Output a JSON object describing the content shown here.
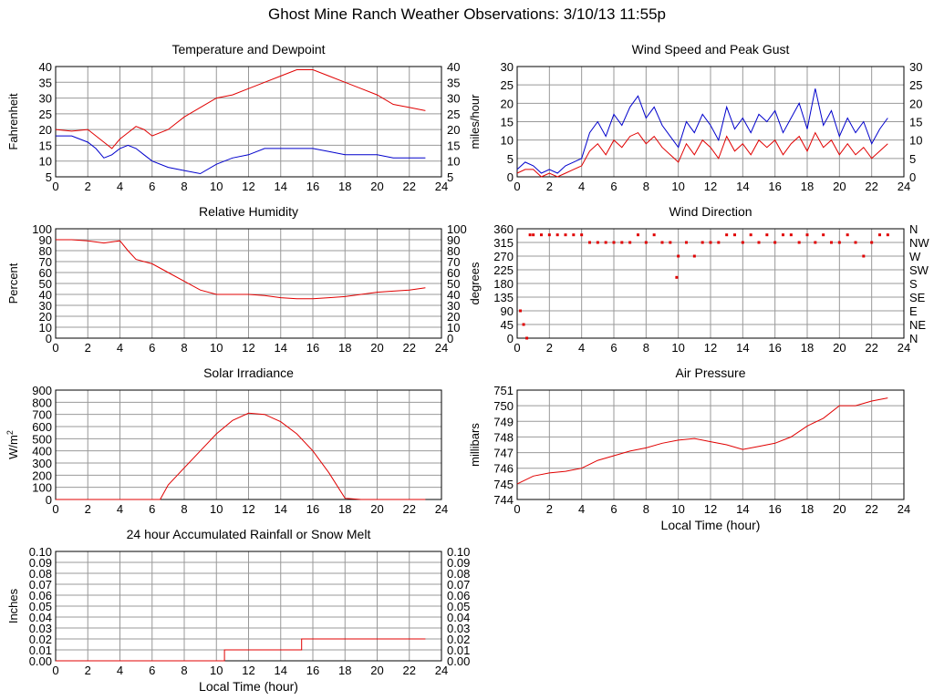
{
  "page_title": "Ghost Mine Ranch Weather Observations: 3/10/13 11:55p",
  "colors": {
    "red": "#e00000",
    "blue": "#0000cc",
    "grid": "#999999",
    "axis": "#000000"
  },
  "chart_data": [
    {
      "id": "temp",
      "type": "line",
      "title": "Temperature and Dewpoint",
      "ylabel": "Fahrenheit",
      "right_axis": true,
      "xlim": [
        0,
        24
      ],
      "ylim": [
        5,
        40
      ],
      "xticks": [
        "0",
        "2",
        "4",
        "6",
        "8",
        "10",
        "12",
        "14",
        "16",
        "18",
        "20",
        "22",
        "24"
      ],
      "yticks": [
        "5",
        "10",
        "15",
        "20",
        "25",
        "30",
        "35",
        "40"
      ],
      "xlabel": "",
      "series": [
        {
          "color": "red",
          "x": [
            0,
            1,
            2,
            3,
            3.5,
            4,
            4.5,
            5,
            5.5,
            6,
            7,
            8,
            9,
            10,
            11,
            12,
            13,
            14,
            15,
            16,
            17,
            18,
            19,
            20,
            21,
            22,
            23
          ],
          "y": [
            20,
            19.5,
            20,
            16,
            14,
            17,
            19,
            21,
            20,
            18,
            20,
            24,
            27,
            30,
            31,
            33,
            35,
            37,
            39,
            39,
            37,
            35,
            33,
            31,
            28,
            27,
            26
          ]
        },
        {
          "color": "blue",
          "x": [
            0,
            1,
            2,
            2.5,
            3,
            3.5,
            4,
            4.5,
            5,
            5.5,
            6,
            7,
            8,
            9,
            10,
            11,
            12,
            13,
            14,
            15,
            16,
            17,
            18,
            19,
            20,
            21,
            22,
            23
          ],
          "y": [
            18,
            18,
            16,
            14,
            11,
            12,
            14,
            15,
            14,
            12,
            10,
            8,
            7,
            6,
            9,
            11,
            12,
            14,
            14,
            14,
            14,
            13,
            12,
            12,
            12,
            11,
            11,
            11
          ]
        }
      ]
    },
    {
      "id": "wind",
      "type": "line",
      "title": "Wind Speed and Peak Gust",
      "ylabel": "miles/hour",
      "right_axis": true,
      "xlim": [
        0,
        24
      ],
      "ylim": [
        0,
        30
      ],
      "xticks": [
        "0",
        "2",
        "4",
        "6",
        "8",
        "10",
        "12",
        "14",
        "16",
        "18",
        "20",
        "22",
        "24"
      ],
      "yticks": [
        "0",
        "5",
        "10",
        "15",
        "20",
        "25",
        "30"
      ],
      "xlabel": "",
      "series": [
        {
          "color": "blue",
          "x": [
            0,
            0.5,
            1,
            1.5,
            2,
            2.5,
            3,
            3.5,
            4,
            4.5,
            5,
            5.5,
            6,
            6.5,
            7,
            7.5,
            8,
            8.5,
            9,
            9.5,
            10,
            10.5,
            11,
            11.5,
            12,
            12.5,
            13,
            13.5,
            14,
            14.5,
            15,
            15.5,
            16,
            16.5,
            17,
            17.5,
            18,
            18.5,
            19,
            19.5,
            20,
            20.5,
            21,
            21.5,
            22,
            22.5,
            23
          ],
          "y": [
            2,
            4,
            3,
            1,
            2,
            1,
            3,
            4,
            5,
            12,
            15,
            11,
            17,
            14,
            19,
            22,
            16,
            19,
            14,
            11,
            8,
            15,
            12,
            17,
            14,
            10,
            19,
            13,
            16,
            12,
            17,
            15,
            18,
            12,
            16,
            20,
            13,
            24,
            14,
            18,
            11,
            16,
            12,
            15,
            9,
            13,
            16
          ]
        },
        {
          "color": "red",
          "x": [
            0,
            0.5,
            1,
            1.5,
            2,
            2.5,
            3,
            3.5,
            4,
            4.5,
            5,
            5.5,
            6,
            6.5,
            7,
            7.5,
            8,
            8.5,
            9,
            9.5,
            10,
            10.5,
            11,
            11.5,
            12,
            12.5,
            13,
            13.5,
            14,
            14.5,
            15,
            15.5,
            16,
            16.5,
            17,
            17.5,
            18,
            18.5,
            19,
            19.5,
            20,
            20.5,
            21,
            21.5,
            22,
            22.5,
            23
          ],
          "y": [
            1,
            2,
            2,
            0,
            1,
            0,
            1,
            2,
            3,
            7,
            9,
            6,
            10,
            8,
            11,
            12,
            9,
            11,
            8,
            6,
            4,
            9,
            6,
            10,
            8,
            5,
            11,
            7,
            9,
            6,
            10,
            8,
            10,
            6,
            9,
            11,
            7,
            12,
            8,
            10,
            6,
            9,
            6,
            8,
            5,
            7,
            9
          ]
        }
      ]
    },
    {
      "id": "humidity",
      "type": "line",
      "title": "Relative Humidity",
      "ylabel": "Percent",
      "right_axis": true,
      "xlim": [
        0,
        24
      ],
      "ylim": [
        0,
        100
      ],
      "xticks": [
        "0",
        "2",
        "4",
        "6",
        "8",
        "10",
        "12",
        "14",
        "16",
        "18",
        "20",
        "22",
        "24"
      ],
      "yticks": [
        "0",
        "10",
        "20",
        "30",
        "40",
        "50",
        "60",
        "70",
        "80",
        "90",
        "100"
      ],
      "xlabel": "",
      "series": [
        {
          "color": "red",
          "x": [
            0,
            1,
            2,
            3,
            3.5,
            4,
            4.5,
            5,
            5.5,
            6,
            7,
            8,
            9,
            10,
            11,
            12,
            13,
            14,
            15,
            16,
            17,
            18,
            19,
            20,
            21,
            22,
            23
          ],
          "y": [
            90,
            90,
            89,
            87,
            88,
            89,
            80,
            72,
            70,
            68,
            60,
            52,
            44,
            40,
            40,
            40,
            39,
            37,
            36,
            36,
            37,
            38,
            40,
            42,
            43,
            44,
            46
          ]
        }
      ]
    },
    {
      "id": "winddir",
      "type": "scatter",
      "title": "Wind Direction",
      "ylabel": "degrees",
      "right_axis": false,
      "right_labels": [
        "N",
        "NE",
        "E",
        "SE",
        "S",
        "SW",
        "W",
        "NW",
        "N"
      ],
      "xlim": [
        0,
        24
      ],
      "ylim": [
        0,
        360
      ],
      "xticks": [
        "0",
        "2",
        "4",
        "6",
        "8",
        "10",
        "12",
        "14",
        "16",
        "18",
        "20",
        "22",
        "24"
      ],
      "yticks": [
        "0",
        "45",
        "90",
        "135",
        "180",
        "225",
        "270",
        "315",
        "360"
      ],
      "xlabel": "",
      "series": [
        {
          "color": "red",
          "x": [
            0.2,
            0.4,
            0.6,
            0.8,
            1,
            1.5,
            2,
            2.5,
            3,
            3.5,
            4,
            4.5,
            5,
            5.5,
            6,
            6.5,
            7,
            7.5,
            8,
            8.5,
            9,
            9.5,
            9.9,
            10,
            10.5,
            11,
            11.5,
            12,
            12.5,
            13,
            13.5,
            14,
            14.5,
            15,
            15.5,
            16,
            16.5,
            17,
            17.5,
            18,
            18.5,
            19,
            19.5,
            20,
            20.5,
            21,
            21.5,
            22,
            22.5,
            23
          ],
          "y": [
            90,
            45,
            0,
            340,
            340,
            340,
            340,
            340,
            340,
            340,
            340,
            315,
            315,
            315,
            315,
            315,
            315,
            340,
            315,
            340,
            315,
            315,
            200,
            270,
            315,
            270,
            315,
            315,
            315,
            340,
            340,
            315,
            340,
            315,
            340,
            315,
            340,
            340,
            315,
            340,
            315,
            340,
            315,
            315,
            340,
            315,
            270,
            315,
            340,
            340
          ]
        }
      ]
    },
    {
      "id": "solar",
      "type": "line",
      "title": "Solar Irradiance",
      "ylabel": "W/m",
      "ylabel_sup": "2",
      "right_axis": false,
      "xlim": [
        0,
        24
      ],
      "ylim": [
        0,
        900
      ],
      "xticks": [
        "0",
        "2",
        "4",
        "6",
        "8",
        "10",
        "12",
        "14",
        "16",
        "18",
        "20",
        "22",
        "24"
      ],
      "yticks": [
        "0",
        "100",
        "200",
        "300",
        "400",
        "500",
        "600",
        "700",
        "800",
        "900"
      ],
      "xlabel": "",
      "series": [
        {
          "color": "red",
          "x": [
            0,
            6.5,
            7,
            8,
            9,
            10,
            11,
            12,
            13,
            14,
            15,
            16,
            17,
            18,
            19,
            23
          ],
          "y": [
            0,
            0,
            120,
            260,
            400,
            540,
            650,
            710,
            700,
            640,
            540,
            400,
            220,
            10,
            0,
            0
          ]
        }
      ]
    },
    {
      "id": "pressure",
      "type": "line",
      "title": "Air Pressure",
      "ylabel": "millibars",
      "right_axis": false,
      "xlim": [
        0,
        24
      ],
      "ylim": [
        744,
        751
      ],
      "xticks": [
        "0",
        "2",
        "4",
        "6",
        "8",
        "10",
        "12",
        "14",
        "16",
        "18",
        "20",
        "22",
        "24"
      ],
      "yticks": [
        "744",
        "745",
        "746",
        "747",
        "748",
        "749",
        "750",
        "751"
      ],
      "xlabel": "Local Time (hour)",
      "series": [
        {
          "color": "red",
          "x": [
            0,
            1,
            2,
            3,
            4,
            5,
            6,
            7,
            8,
            9,
            10,
            11,
            12,
            13,
            14,
            15,
            16,
            17,
            18,
            19,
            20,
            21,
            22,
            23
          ],
          "y": [
            745,
            745.5,
            745.7,
            745.8,
            746,
            746.5,
            746.8,
            747.1,
            747.3,
            747.6,
            747.8,
            747.9,
            747.7,
            747.5,
            747.2,
            747.4,
            747.6,
            748,
            748.7,
            749.2,
            750,
            750,
            750.3,
            750.5
          ]
        }
      ]
    },
    {
      "id": "rain",
      "type": "line",
      "title": "24 hour Accumulated Rainfall or Snow Melt",
      "ylabel": "Inches",
      "right_axis": true,
      "xlim": [
        0,
        24
      ],
      "ylim": [
        0,
        0.1
      ],
      "xticks": [
        "0",
        "2",
        "4",
        "6",
        "8",
        "10",
        "12",
        "14",
        "16",
        "18",
        "20",
        "22",
        "24"
      ],
      "yticks": [
        "0.00",
        "0.01",
        "0.02",
        "0.03",
        "0.04",
        "0.05",
        "0.06",
        "0.07",
        "0.08",
        "0.09",
        "0.10"
      ],
      "xlabel": "Local Time (hour)",
      "series": [
        {
          "color": "red",
          "x": [
            0,
            10.5,
            10.5,
            15.3,
            15.3,
            23
          ],
          "y": [
            0,
            0,
            0.01,
            0.01,
            0.02,
            0.02
          ]
        }
      ]
    }
  ]
}
